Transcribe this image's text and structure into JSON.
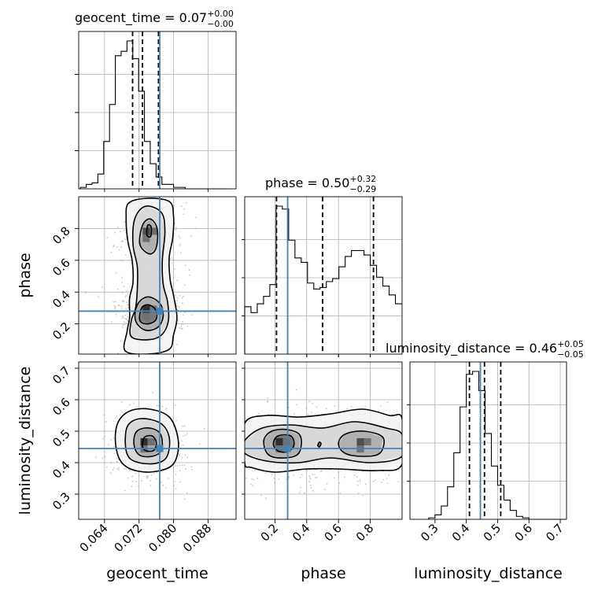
{
  "chart_data": {
    "type": "corner",
    "parameters": [
      {
        "name": "geocent_time",
        "range": [
          0.058,
          0.0945
        ],
        "ticks": [
          0.064,
          0.072,
          0.08,
          0.088
        ],
        "tick_labels": [
          "0.064",
          "0.072",
          "0.080",
          "0.088"
        ],
        "truth": 0.0768,
        "quantiles": [
          0.0705,
          0.0728,
          0.0765
        ],
        "title": {
          "text": "geocent_time = 0.07",
          "sup": "+0.00",
          "sub": "−0.00"
        },
        "hist": {
          "edges_start": 0.0584,
          "bin_width": 0.00135,
          "counts": [
            1,
            3,
            4,
            10,
            32,
            57,
            90,
            93,
            100,
            88,
            66,
            32,
            17,
            8,
            3,
            3,
            1,
            1,
            0,
            0,
            0,
            0,
            0,
            0,
            0,
            0
          ]
        }
      },
      {
        "name": "phase",
        "range": [
          0.01,
          1.0
        ],
        "ticks": [
          0.2,
          0.4,
          0.6,
          0.8
        ],
        "tick_labels": [
          "0.2",
          "0.4",
          "0.6",
          "0.8"
        ],
        "truth": 0.28,
        "quantiles": [
          0.21,
          0.5,
          0.82
        ],
        "title": {
          "text": "phase = 0.50",
          "sup": "+0.32",
          "sub": "−0.29"
        },
        "hist": {
          "edges_start": 0.01,
          "bin_width": 0.0395,
          "counts": [
            32,
            28,
            34,
            39,
            47,
            100,
            98,
            77,
            65,
            62,
            48,
            44,
            45,
            49,
            51,
            59,
            66,
            70,
            70,
            67,
            60,
            52,
            46,
            40,
            34
          ]
        }
      },
      {
        "name": "luminosity_distance",
        "range": [
          0.22,
          0.72
        ],
        "ticks": [
          0.3,
          0.4,
          0.5,
          0.6,
          0.7
        ],
        "tick_labels": [
          "0.3",
          "0.4",
          "0.5",
          "0.6",
          "0.7"
        ],
        "truth": 0.445,
        "quantiles": [
          0.41,
          0.458,
          0.51
        ],
        "title": {
          "text": "luminosity_distance = 0.46",
          "sup": "+0.05",
          "sub": "−0.05"
        },
        "hist": {
          "edges_start": 0.28,
          "bin_width": 0.02,
          "counts": [
            1,
            3,
            9,
            22,
            45,
            76,
            98,
            100,
            87,
            58,
            36,
            23,
            13,
            6,
            2,
            1,
            0,
            0,
            0,
            0,
            0,
            0
          ]
        }
      }
    ],
    "pairs": [
      {
        "x": "geocent_time",
        "y": "phase",
        "density_peaks": [
          {
            "x": 0.0745,
            "y": 0.27,
            "sx": 0.0022,
            "sy": 0.05,
            "w": 1.0
          },
          {
            "x": 0.0745,
            "y": 0.76,
            "sx": 0.002,
            "sy": 0.07,
            "w": 0.7
          }
        ],
        "contours": [
          [
            [
              0.0688,
              0.03
            ],
            [
              0.0692,
              0.15
            ],
            [
              0.0698,
              0.24
            ],
            [
              0.0698,
              0.36
            ],
            [
              0.0706,
              0.46
            ],
            [
              0.0704,
              0.6
            ],
            [
              0.0694,
              0.72
            ],
            [
              0.069,
              0.86
            ],
            [
              0.0696,
              0.96
            ],
            [
              0.074,
              0.99
            ],
            [
              0.079,
              0.97
            ],
            [
              0.08,
              0.88
            ],
            [
              0.0798,
              0.74
            ],
            [
              0.079,
              0.62
            ],
            [
              0.0792,
              0.48
            ],
            [
              0.08,
              0.38
            ],
            [
              0.0808,
              0.24
            ],
            [
              0.08,
              0.13
            ],
            [
              0.079,
              0.04
            ],
            [
              0.074,
              0.01
            ]
          ],
          [
            [
              0.0702,
              0.12
            ],
            [
              0.0702,
              0.22
            ],
            [
              0.0712,
              0.3
            ],
            [
              0.0716,
              0.42
            ],
            [
              0.0716,
              0.56
            ],
            [
              0.0706,
              0.7
            ],
            [
              0.071,
              0.86
            ],
            [
              0.0735,
              0.94
            ],
            [
              0.0772,
              0.9
            ],
            [
              0.078,
              0.78
            ],
            [
              0.0774,
              0.6
            ],
            [
              0.0776,
              0.45
            ],
            [
              0.0786,
              0.34
            ],
            [
              0.0788,
              0.22
            ],
            [
              0.0772,
              0.13
            ],
            [
              0.074,
              0.1
            ]
          ],
          [
            [
              0.0712,
              0.22
            ],
            [
              0.0716,
              0.32
            ],
            [
              0.074,
              0.37
            ],
            [
              0.0768,
              0.33
            ],
            [
              0.0776,
              0.25
            ],
            [
              0.0764,
              0.18
            ],
            [
              0.0735,
              0.16
            ]
          ],
          [
            [
              0.0722,
              0.7
            ],
            [
              0.0728,
              0.82
            ],
            [
              0.0746,
              0.86
            ],
            [
              0.0762,
              0.8
            ],
            [
              0.076,
              0.68
            ],
            [
              0.0744,
              0.64
            ]
          ],
          [
            [
              0.0722,
              0.22
            ],
            [
              0.0726,
              0.3
            ],
            [
              0.0742,
              0.32
            ],
            [
              0.0758,
              0.29
            ],
            [
              0.076,
              0.23
            ],
            [
              0.0742,
              0.2
            ]
          ],
          [
            [
              0.0738,
              0.76
            ],
            [
              0.074,
              0.82
            ],
            [
              0.0748,
              0.81
            ],
            [
              0.0747,
              0.75
            ]
          ]
        ]
      },
      {
        "x": "geocent_time",
        "y": "luminosity_distance",
        "density_peaks": [
          {
            "x": 0.074,
            "y": 0.455,
            "sx": 0.0025,
            "sy": 0.035,
            "w": 1.0
          }
        ],
        "contours": [
          [
            [
              0.0665,
              0.47
            ],
            [
              0.0672,
              0.53
            ],
            [
              0.07,
              0.565
            ],
            [
              0.0745,
              0.57
            ],
            [
              0.079,
              0.545
            ],
            [
              0.081,
              0.48
            ],
            [
              0.0808,
              0.42
            ],
            [
              0.079,
              0.385
            ],
            [
              0.0745,
              0.37
            ],
            [
              0.07,
              0.38
            ],
            [
              0.0675,
              0.41
            ]
          ],
          [
            [
              0.0688,
              0.47
            ],
            [
              0.0695,
              0.52
            ],
            [
              0.0725,
              0.54
            ],
            [
              0.077,
              0.525
            ],
            [
              0.079,
              0.48
            ],
            [
              0.0785,
              0.42
            ],
            [
              0.076,
              0.398
            ],
            [
              0.072,
              0.4
            ],
            [
              0.0695,
              0.42
            ]
          ],
          [
            [
              0.0708,
              0.46
            ],
            [
              0.0715,
              0.5
            ],
            [
              0.0745,
              0.51
            ],
            [
              0.077,
              0.49
            ],
            [
              0.0772,
              0.44
            ],
            [
              0.075,
              0.42
            ],
            [
              0.072,
              0.425
            ]
          ],
          [
            [
              0.0728,
              0.45
            ],
            [
              0.0732,
              0.48
            ],
            [
              0.075,
              0.485
            ],
            [
              0.076,
              0.465
            ],
            [
              0.0755,
              0.44
            ],
            [
              0.0738,
              0.437
            ]
          ]
        ]
      },
      {
        "x": "phase",
        "y": "luminosity_distance",
        "density_peaks": [
          {
            "x": 0.25,
            "y": 0.455,
            "sx": 0.08,
            "sy": 0.035,
            "w": 1.0
          },
          {
            "x": 0.76,
            "y": 0.455,
            "sx": 0.11,
            "sy": 0.035,
            "w": 0.75
          }
        ],
        "contours": [
          [
            [
              0.01,
              0.525
            ],
            [
              0.15,
              0.55
            ],
            [
              0.35,
              0.545
            ],
            [
              0.55,
              0.555
            ],
            [
              0.75,
              0.57
            ],
            [
              0.92,
              0.55
            ],
            [
              1.0,
              0.54
            ],
            [
              1.0,
              0.395
            ],
            [
              0.85,
              0.375
            ],
            [
              0.6,
              0.38
            ],
            [
              0.4,
              0.38
            ],
            [
              0.2,
              0.37
            ],
            [
              0.05,
              0.385
            ],
            [
              0.01,
              0.4
            ]
          ],
          [
            [
              0.01,
              0.47
            ],
            [
              0.12,
              0.51
            ],
            [
              0.3,
              0.52
            ],
            [
              0.5,
              0.51
            ],
            [
              0.7,
              0.53
            ],
            [
              0.9,
              0.51
            ],
            [
              1.0,
              0.49
            ],
            [
              1.0,
              0.42
            ],
            [
              0.8,
              0.4
            ],
            [
              0.55,
              0.415
            ],
            [
              0.35,
              0.4
            ],
            [
              0.15,
              0.405
            ],
            [
              0.01,
              0.43
            ]
          ],
          [
            [
              0.13,
              0.47
            ],
            [
              0.18,
              0.5
            ],
            [
              0.28,
              0.505
            ],
            [
              0.36,
              0.485
            ],
            [
              0.35,
              0.43
            ],
            [
              0.26,
              0.415
            ],
            [
              0.16,
              0.425
            ]
          ],
          [
            [
              0.6,
              0.46
            ],
            [
              0.64,
              0.49
            ],
            [
              0.76,
              0.5
            ],
            [
              0.88,
              0.48
            ],
            [
              0.86,
              0.43
            ],
            [
              0.75,
              0.42
            ],
            [
              0.64,
              0.43
            ]
          ],
          [
            [
              0.19,
              0.46
            ],
            [
              0.22,
              0.485
            ],
            [
              0.3,
              0.485
            ],
            [
              0.32,
              0.455
            ],
            [
              0.28,
              0.435
            ],
            [
              0.22,
              0.437
            ]
          ],
          [
            [
              0.47,
              0.455
            ],
            [
              0.48,
              0.465
            ],
            [
              0.49,
              0.46
            ],
            [
              0.48,
              0.45
            ]
          ]
        ]
      }
    ],
    "truth_color": "#4682b4",
    "grid": true
  }
}
